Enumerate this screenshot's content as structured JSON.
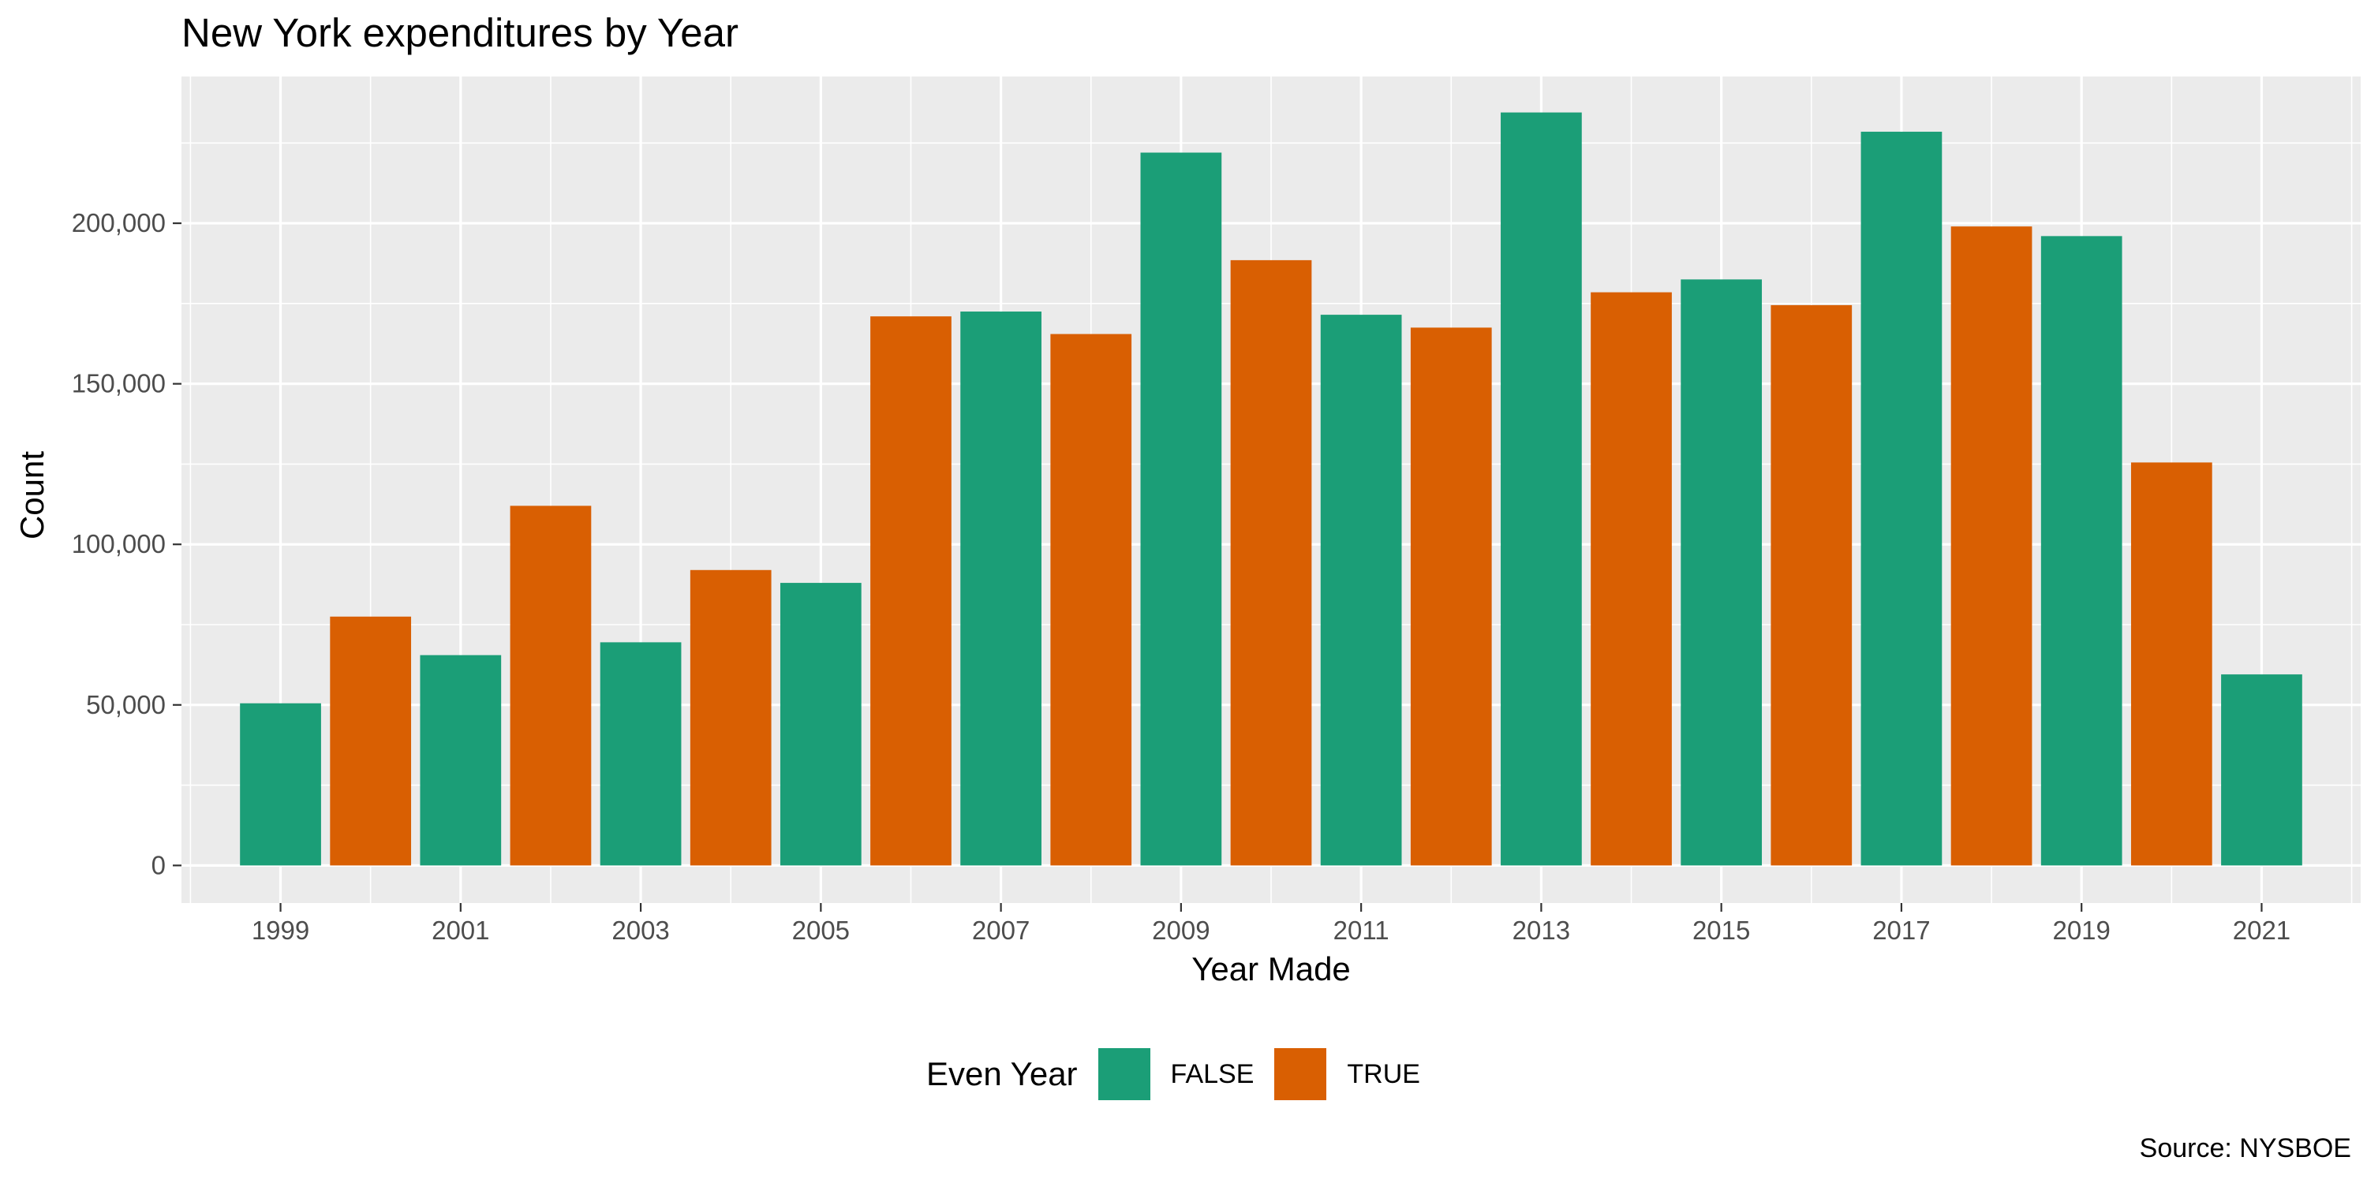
{
  "chart_data": {
    "type": "bar",
    "title": "New York expenditures by Year",
    "xlabel": "Year Made",
    "ylabel": "Count",
    "caption": "Source: NYSBOE",
    "legend": {
      "title": "Even Year",
      "placement": "bottom",
      "entries": [
        {
          "name": "FALSE",
          "color": "#1b9e77"
        },
        {
          "name": "TRUE",
          "color": "#d95f02"
        }
      ]
    },
    "categories": [
      1999,
      2000,
      2001,
      2002,
      2003,
      2004,
      2005,
      2006,
      2007,
      2008,
      2009,
      2010,
      2011,
      2012,
      2013,
      2014,
      2015,
      2016,
      2017,
      2018,
      2019,
      2020,
      2021
    ],
    "values": [
      50500,
      77500,
      65500,
      112000,
      69500,
      92000,
      88000,
      171000,
      172500,
      165500,
      222000,
      188500,
      171500,
      167500,
      234500,
      178500,
      182500,
      174500,
      228500,
      199000,
      196000,
      125500,
      59500
    ],
    "even_year": [
      false,
      true,
      false,
      true,
      false,
      true,
      false,
      true,
      false,
      true,
      false,
      true,
      false,
      true,
      false,
      true,
      false,
      true,
      false,
      true,
      false,
      true,
      false
    ],
    "x_tick_labels": [
      "1999",
      "2001",
      "2003",
      "2005",
      "2007",
      "2009",
      "2011",
      "2013",
      "2015",
      "2017",
      "2019",
      "2021"
    ],
    "y_ticks": [
      0,
      50000,
      100000,
      150000,
      200000
    ],
    "y_tick_labels": [
      "0",
      "50,000",
      "100,000",
      "150,000",
      "200,000"
    ],
    "ylim": [
      -11700,
      245700
    ],
    "xlim": [
      1997.9,
      2022.1
    ],
    "grid": true,
    "colors": {
      "panel_bg": "#ebebeb",
      "grid": "#ffffff",
      "text": "#4d4d4d",
      "false": "#1b9e77",
      "true": "#d95f02"
    }
  }
}
